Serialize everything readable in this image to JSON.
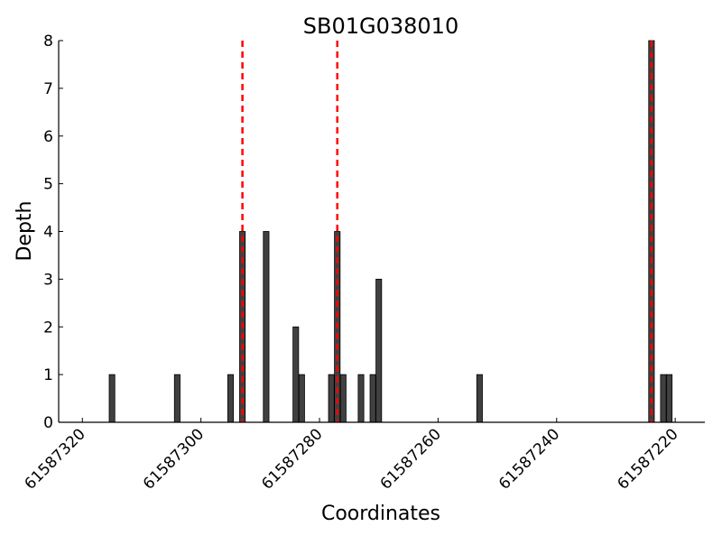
{
  "chart_data": {
    "type": "bar",
    "title": "SB01G038010",
    "xlabel": "Coordinates",
    "ylabel": "Depth",
    "x_reversed": true,
    "xlim": [
      61587324,
      61587215
    ],
    "ylim": [
      0,
      8
    ],
    "x_ticks": [
      61587320,
      61587300,
      61587280,
      61587260,
      61587240,
      61587220
    ],
    "x_tick_labels": [
      "61587320",
      "61587300",
      "61587280",
      "61587260",
      "61587240",
      "61587220"
    ],
    "y_ticks": [
      0,
      1,
      2,
      3,
      4,
      5,
      6,
      7,
      8
    ],
    "y_tick_labels": [
      "0",
      "1",
      "2",
      "3",
      "4",
      "5",
      "6",
      "7",
      "8"
    ],
    "grid": false,
    "series": [
      {
        "x": [
          61587315,
          61587304,
          61587295,
          61587293,
          61587289,
          61587284,
          61587283,
          61587278,
          61587277,
          61587276,
          61587273,
          61587271,
          61587270,
          61587253,
          61587224,
          61587222,
          61587221
        ],
        "values": [
          1,
          1,
          1,
          4,
          4,
          2,
          1,
          1,
          4,
          1,
          1,
          1,
          3,
          1,
          8,
          1,
          1
        ]
      }
    ],
    "reference_lines": [
      61587293,
      61587277,
      61587224
    ],
    "colors": {
      "bar_fill": "#404040",
      "bar_edge": "#000000",
      "reference_line": "#ff0000",
      "axis": "#000000"
    }
  }
}
